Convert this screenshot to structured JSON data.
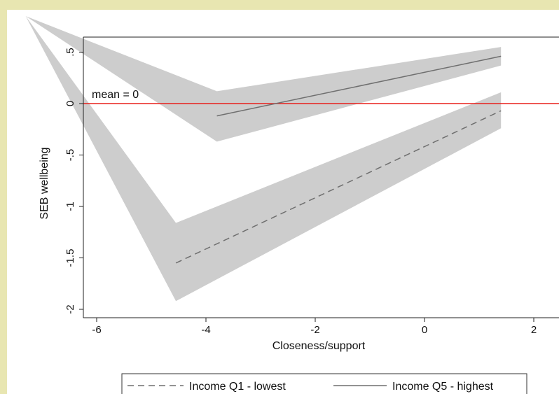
{
  "chart_data": {
    "type": "line",
    "title": "",
    "xlabel": "Closeness/support",
    "ylabel": "SEB wellbeing",
    "xlim": [
      -6.1,
      2.1
    ],
    "ylim": [
      -2.08,
      0.62
    ],
    "x_ticks": [
      -6,
      -4,
      -2,
      0,
      2
    ],
    "x_tick_labels": [
      "-6",
      "-4",
      "-2",
      "0",
      "2"
    ],
    "y_ticks": [
      0.5,
      0,
      -0.5,
      -1,
      -1.5,
      -2
    ],
    "y_tick_labels": [
      ".5",
      "0",
      "-.5",
      "-1",
      "-1.5",
      "-2"
    ],
    "reference_line": {
      "y": 0,
      "label": "mean = 0",
      "color": "#e8201c"
    },
    "grid": false,
    "legend_position": "bottom",
    "series": [
      {
        "name": "Income Q1 - lowest",
        "style": "dashed",
        "color": "#6f6f6f",
        "x": [
          -4.55,
          1.4
        ],
        "y": [
          -1.55,
          -0.07
        ],
        "ci": {
          "x": [
            -7.3,
            -4.55,
            1.4
          ],
          "lower": [
            0.85,
            -1.92,
            -0.24
          ],
          "upper": [
            0.85,
            -1.16,
            0.11
          ]
        }
      },
      {
        "name": "Income Q5 - highest",
        "style": "solid",
        "color": "#6f6f6f",
        "x": [
          -3.8,
          1.4
        ],
        "y": [
          -0.12,
          0.46
        ],
        "ci": {
          "x": [
            -7.3,
            -3.8,
            1.4
          ],
          "lower": [
            0.85,
            -0.37,
            0.37
          ],
          "upper": [
            0.85,
            0.12,
            0.55
          ]
        }
      }
    ],
    "ci_color": "#cdcdcd"
  }
}
